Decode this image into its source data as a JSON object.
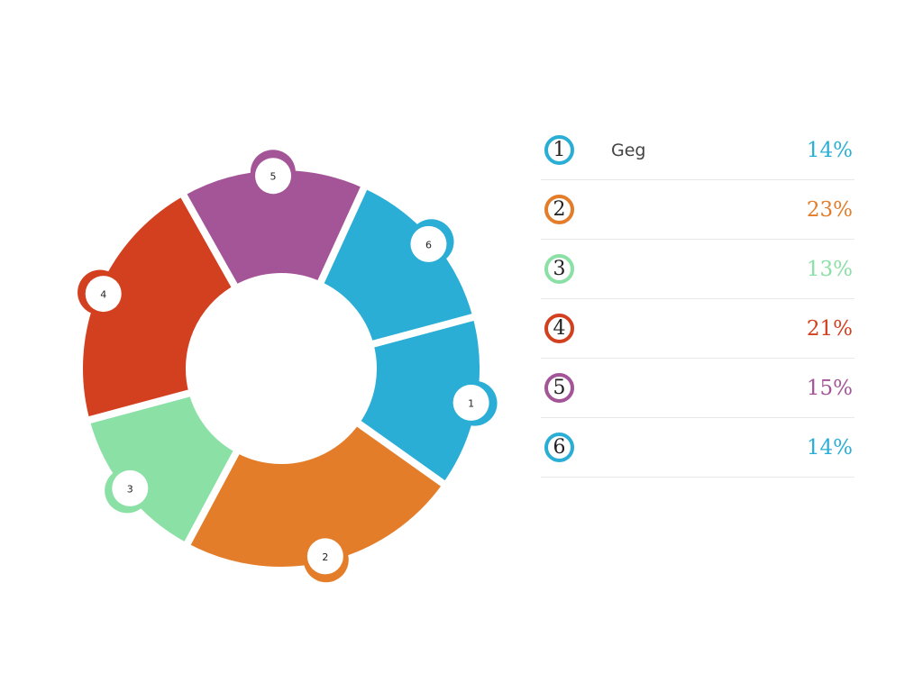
{
  "chart_data": {
    "type": "donut",
    "segments": [
      {
        "id": "1",
        "label": "Geg",
        "value": 14,
        "display": "14%",
        "color": "#2aaed6"
      },
      {
        "id": "2",
        "label": "",
        "value": 23,
        "display": "23%",
        "color": "#e37d2a"
      },
      {
        "id": "3",
        "label": "",
        "value": 13,
        "display": "13%",
        "color": "#8be0a5"
      },
      {
        "id": "4",
        "label": "",
        "value": 21,
        "display": "21%",
        "color": "#d34020"
      },
      {
        "id": "5",
        "label": "",
        "value": 15,
        "display": "15%",
        "color": "#a35597"
      },
      {
        "id": "6",
        "label": "",
        "value": 14,
        "display": "14%",
        "color": "#2aaed6"
      }
    ]
  }
}
